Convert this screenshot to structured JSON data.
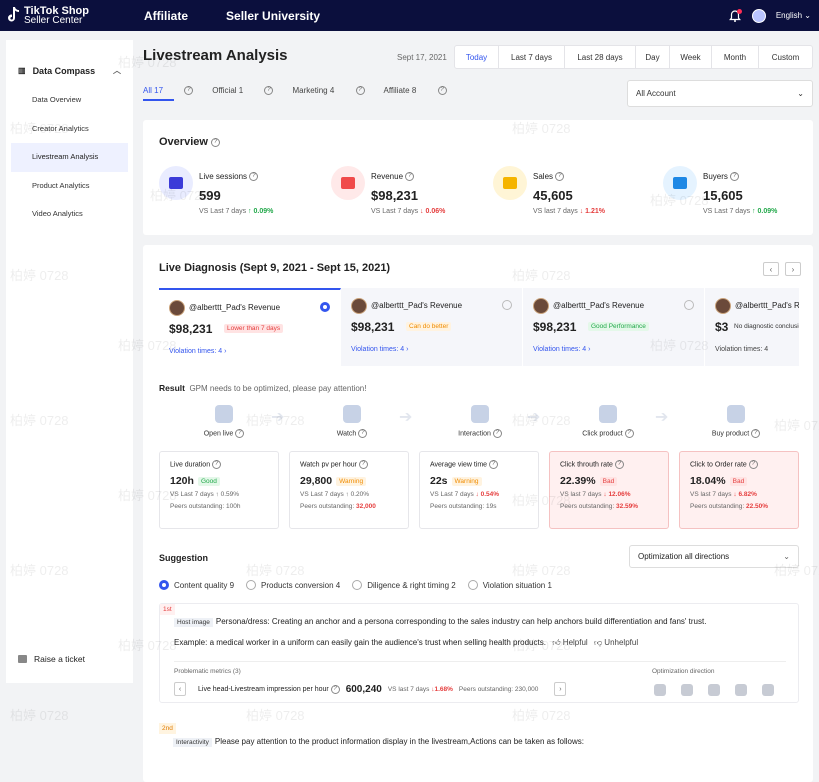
{
  "topbar": {
    "brand_line1": "TikTok Shop",
    "brand_line2": "Seller Center",
    "nav": [
      "Affiliate",
      "Seller University"
    ],
    "language": "English"
  },
  "sidebar": {
    "section": "Data Compass",
    "items": [
      {
        "label": "Data Overview"
      },
      {
        "label": "Creator Analytics"
      },
      {
        "label": "Livestream Analysis"
      },
      {
        "label": "Product Analytics"
      },
      {
        "label": "Video Analytics"
      }
    ],
    "ticket": "Raise a ticket"
  },
  "page": {
    "title": "Livestream Analysis",
    "date": "Sept 17, 2021",
    "ranges": [
      "Today",
      "Last 7 days",
      "Last 28 days",
      "Day",
      "Week",
      "Month",
      "Custom"
    ],
    "filters": [
      "All 17",
      "Official 1",
      "Marketing 4",
      "Affiliate 8"
    ],
    "account": "All Account"
  },
  "overview": {
    "title": "Overview",
    "metrics": [
      {
        "label": "Live sessions",
        "value": "599",
        "cmp": "VS Last 7 days",
        "delta": "0.09%",
        "dir": "up",
        "color": "#e9ecff",
        "icon": "#3b3bd8"
      },
      {
        "label": "Revenue",
        "value": "$98,231",
        "cmp": "VS Last 7 days",
        "delta": "0.06%",
        "dir": "down",
        "color": "#ffe9e9",
        "icon": "#f04a4a"
      },
      {
        "label": "Sales",
        "value": "45,605",
        "cmp": "VS last 7 days",
        "delta": "1.21%",
        "dir": "down",
        "color": "#fff5d6",
        "icon": "#f5b400"
      },
      {
        "label": "Buyers",
        "value": "15,605",
        "cmp": "VS Last 7 days",
        "delta": "0.09%",
        "dir": "up",
        "color": "#e5f3ff",
        "icon": "#1e88e5"
      }
    ]
  },
  "diagnosis": {
    "title": "Live Diagnosis (Sept 9, 2021 - Sept 15, 2021)",
    "cards": [
      {
        "name": "@alberttt_Pad's Revenue",
        "revenue": "$98,231",
        "tag": "Lower than 7 days",
        "tagtype": "badt",
        "violation": "Violation times: 4",
        "sel": true
      },
      {
        "name": "@alberttt_Pad's Revenue",
        "revenue": "$98,231",
        "tag": "Can do better",
        "tagtype": "warn",
        "violation": "Violation times: 4",
        "sel": false
      },
      {
        "name": "@alberttt_Pad's Revenue",
        "revenue": "$98,231",
        "tag": "Good Performance",
        "tagtype": "good",
        "violation": "Violation times: 4",
        "sel": false
      },
      {
        "name": "@alberttt_Pad's Revenue",
        "revenue": "$3",
        "tag": "No diagnostic conclusion",
        "tagtype": "nodiag",
        "violation": "Violation times: 4",
        "sel": false
      }
    ],
    "result_label": "Result",
    "result_text": "GPM needs to be optimized, please pay attention!",
    "steps": [
      "Open live",
      "Watch",
      "Interaction",
      "Click product",
      "Buy product"
    ],
    "boxes": [
      {
        "label": "Live duration",
        "value": "120h",
        "tag": "Good",
        "tagtype": "good",
        "cmp": "VS Last 7 days",
        "delta": "0.59%",
        "dir": "up",
        "peers": "Peers outstanding:",
        "peerval": "100h",
        "bad": false
      },
      {
        "label": "Watch pv per hour",
        "value": "29,800",
        "tag": "Warning",
        "tagtype": "warn",
        "cmp": "VS Last 7 days",
        "delta": "0.20%",
        "dir": "up",
        "peers": "Peers outstanding:",
        "peerval": "32,000",
        "bad": false
      },
      {
        "label": "Average view time",
        "value": "22s",
        "tag": "Warning",
        "tagtype": "warn",
        "cmp": "VS Last 7 days",
        "delta": "0.54%",
        "dir": "down",
        "peers": "Peers outstanding:",
        "peerval": "19s",
        "bad": false
      },
      {
        "label": "Click throuth rate",
        "value": "22.39%",
        "tag": "Bad",
        "tagtype": "badt",
        "cmp": "VS last 7 days",
        "delta": "12.06%",
        "dir": "down",
        "peers": "Peers outstanding:",
        "peerval": "32.59%",
        "bad": true
      },
      {
        "label": "Click to Order rate",
        "value": "18.04%",
        "tag": "Bad",
        "tagtype": "badt",
        "cmp": "VS last 7 days",
        "delta": "6.82%",
        "dir": "down",
        "peers": "Peers outstanding:",
        "peerval": "22.50%",
        "bad": true
      }
    ]
  },
  "suggestion": {
    "title": "Suggestion",
    "select": "Optimization all directions",
    "options": [
      "Content quality 9",
      "Products conversion 4",
      "Diligence & right timing 2",
      "Violation situation 1"
    ],
    "first": {
      "rank": "1st",
      "chip": "Host image",
      "text": "Persona/dress: Creating an anchor and a persona corresponding to the sales industry can help anchors build differentiation and fans' trust.",
      "example": "Example: a medical worker in a uniform can easily gain the audience's trust when selling health products.",
      "helpful": "Helpful",
      "unhelpful": "Unhelpful",
      "pm_label": "Problematic metrics (3)",
      "od_label": "Optimization direction",
      "metric": "Live head-Livestream impression per hour",
      "metric_value": "600,240",
      "cmp": "VS last 7 days",
      "delta": "1.68%",
      "peers": "Peers outstanding: 230,000"
    },
    "second": {
      "rank": "2nd",
      "chip": "Interactivity",
      "text": "Please pay attention to the product information display in the livestream,Actions can be taken as follows:"
    }
  },
  "watermark": "柏婷 0728"
}
